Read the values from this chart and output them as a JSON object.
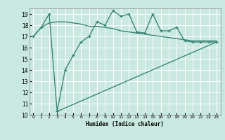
{
  "xlabel": "Humidex (Indice chaleur)",
  "bg_color": "#c8e8e0",
  "line_color": "#2e7d6e",
  "grid_color": "#ffffff",
  "xlim": [
    -0.5,
    23.5
  ],
  "ylim": [
    10,
    19.5
  ],
  "yticks": [
    10,
    11,
    12,
    13,
    14,
    15,
    16,
    17,
    18,
    19
  ],
  "xticks": [
    0,
    1,
    2,
    3,
    4,
    5,
    6,
    7,
    8,
    9,
    10,
    11,
    12,
    13,
    14,
    15,
    16,
    17,
    18,
    19,
    20,
    21,
    22,
    23
  ],
  "line1_x": [
    0,
    1,
    2,
    3,
    4,
    5,
    6,
    7,
    8,
    9,
    10,
    11,
    12,
    13,
    14,
    15,
    16,
    17,
    18,
    19,
    20,
    21,
    22,
    23
  ],
  "line1_y": [
    17.0,
    17.8,
    19.0,
    10.3,
    14.0,
    15.3,
    16.5,
    17.0,
    18.3,
    18.0,
    19.3,
    18.8,
    19.0,
    17.4,
    17.3,
    19.0,
    17.5,
    17.5,
    17.8,
    16.6,
    16.5,
    16.5,
    16.5,
    16.5
  ],
  "line2_x": [
    0,
    1,
    2,
    3,
    4,
    5,
    6,
    7,
    8,
    9,
    10,
    11,
    12,
    13,
    14,
    15,
    16,
    17,
    18,
    19,
    20,
    21,
    22,
    23
  ],
  "line2_y": [
    17.0,
    17.8,
    18.2,
    18.3,
    18.3,
    18.2,
    18.1,
    17.9,
    17.9,
    17.8,
    17.7,
    17.5,
    17.4,
    17.3,
    17.2,
    17.1,
    17.0,
    16.9,
    16.8,
    16.7,
    16.6,
    16.6,
    16.6,
    16.6
  ],
  "line3_x": [
    3,
    23
  ],
  "line3_y": [
    10.3,
    16.5
  ]
}
